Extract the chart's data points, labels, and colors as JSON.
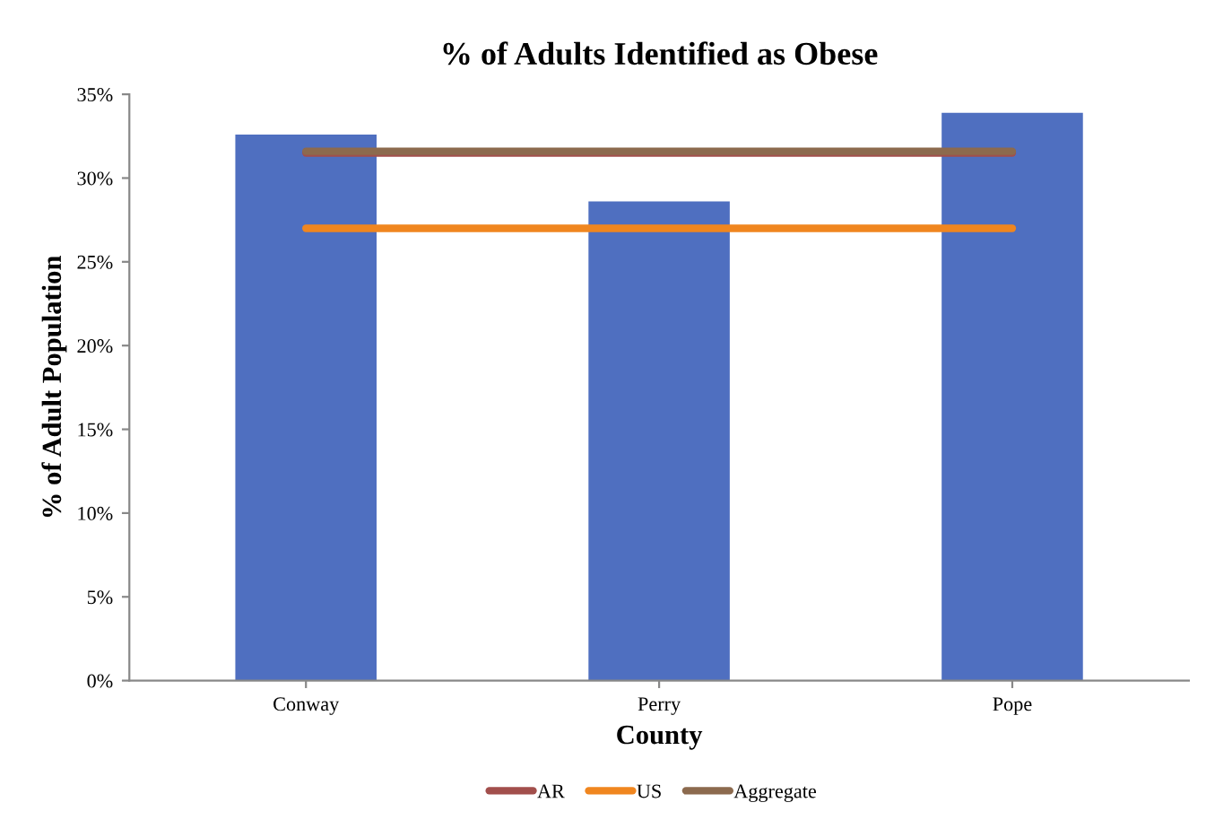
{
  "chart_data": {
    "type": "bar",
    "title": "% of Adults Identified as Obese",
    "xlabel": "County",
    "ylabel": "% of Adult Population",
    "categories": [
      "Conway",
      "Perry",
      "Pope"
    ],
    "series": [
      {
        "color": "#4f6fc0",
        "values": [
          32.6,
          28.6,
          33.9
        ]
      },
      {
        "type": "line",
        "name": "AR",
        "color": "#a24f4c",
        "values": [
          31.5,
          31.5,
          31.5
        ]
      },
      {
        "type": "line",
        "name": "US",
        "color": "#f0861f",
        "values": [
          27.0,
          27.0,
          27.0
        ]
      },
      {
        "type": "line",
        "name": "Aggregate",
        "color": "#8c6a4e",
        "values": [
          31.6,
          31.6,
          31.6
        ]
      }
    ],
    "ylim": [
      0,
      35
    ],
    "yticks": [
      {
        "value": 0,
        "label": "0%"
      },
      {
        "value": 5,
        "label": "5%"
      },
      {
        "value": 10,
        "label": "10%"
      },
      {
        "value": 15,
        "label": "15%"
      },
      {
        "value": 20,
        "label": "20%"
      },
      {
        "value": 25,
        "label": "25%"
      },
      {
        "value": 30,
        "label": "30%"
      },
      {
        "value": 35,
        "label": "35%"
      }
    ],
    "grid": false,
    "legend": "bottom",
    "marker": "none",
    "line_style": "solid"
  }
}
